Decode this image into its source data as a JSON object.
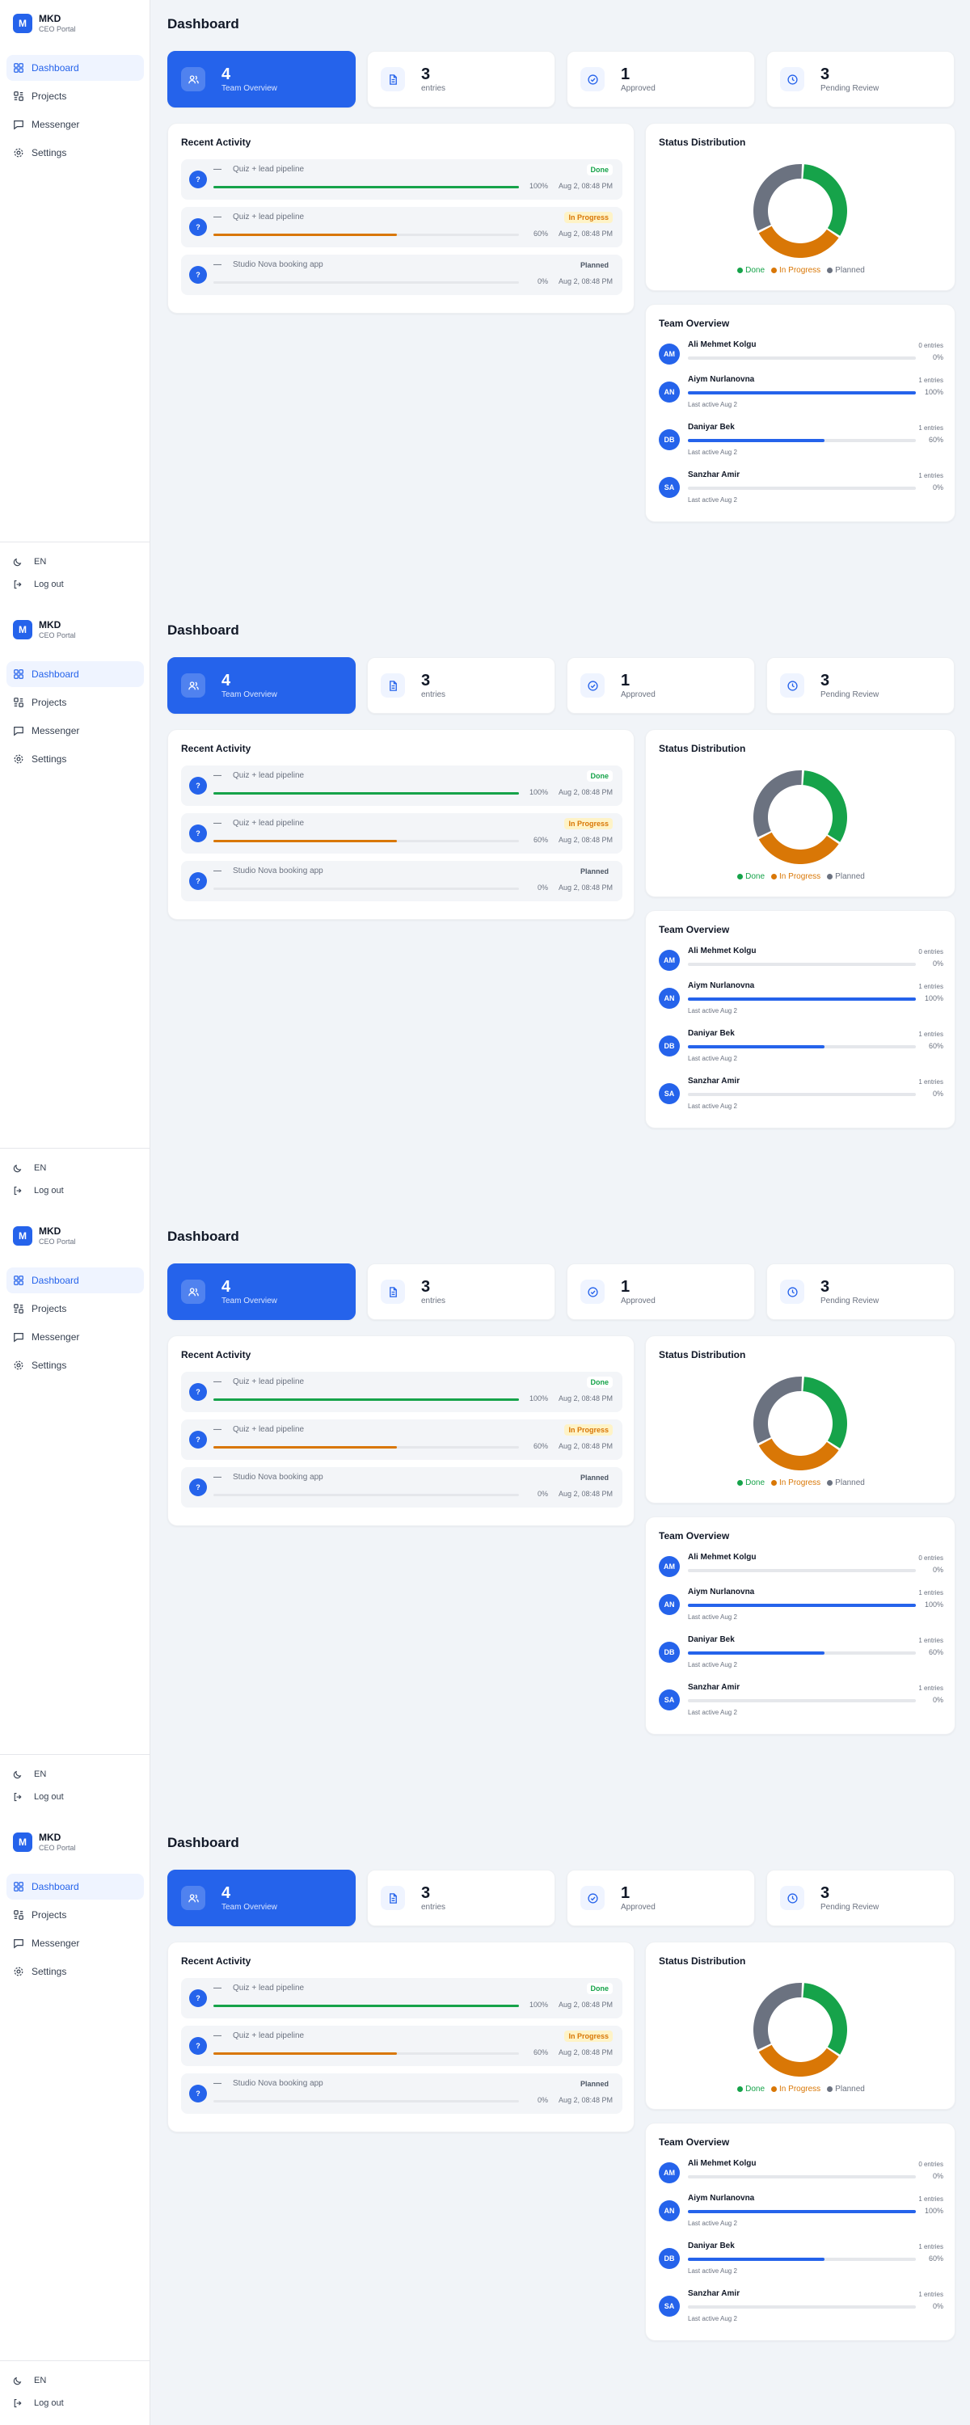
{
  "brand": {
    "logo_letter": "M",
    "name": "MKD",
    "subtitle": "CEO Portal"
  },
  "nav": [
    {
      "label": "Dashboard",
      "icon": "grid-icon",
      "active": true
    },
    {
      "label": "Projects",
      "icon": "projects-icon",
      "active": false
    },
    {
      "label": "Messenger",
      "icon": "message-icon",
      "active": false
    },
    {
      "label": "Settings",
      "icon": "gear-icon",
      "active": false
    }
  ],
  "bottom": {
    "language": "EN",
    "logout": "Log out"
  },
  "page_title": "Dashboard",
  "stats": [
    {
      "value": "4",
      "label": "Team Overview",
      "icon": "users-icon",
      "highlight": true
    },
    {
      "value": "3",
      "label": "entries",
      "icon": "document-icon",
      "highlight": false
    },
    {
      "value": "1",
      "label": "Approved",
      "icon": "check-circle-icon",
      "highlight": false
    },
    {
      "value": "3",
      "label": "Pending Review",
      "icon": "clock-icon",
      "highlight": false
    }
  ],
  "recent_activity": {
    "title": "Recent Activity",
    "items": [
      {
        "avatar": "?",
        "dash": "—",
        "name": "Quiz + lead pipeline",
        "status": "Done",
        "progress": 100,
        "progress_label": "100%",
        "date": "Aug 2, 08:48 PM",
        "status_color": "#16a34a",
        "status_bg": "#ffffff",
        "bar_color": "#16a34a"
      },
      {
        "avatar": "?",
        "dash": "—",
        "name": "Quiz + lead pipeline",
        "status": "In Progress",
        "progress": 60,
        "progress_label": "60%",
        "date": "Aug 2, 08:48 PM",
        "status_color": "#d97706",
        "status_bg": "#fef3c7",
        "bar_color": "#d97706"
      },
      {
        "avatar": "?",
        "dash": "—",
        "name": "Studio Nova booking app",
        "status": "Planned",
        "progress": 0,
        "progress_label": "0%",
        "date": "Aug 2, 08:48 PM",
        "status_color": "#4b5563",
        "status_bg": "transparent",
        "bar_color": "#6b7280"
      }
    ]
  },
  "status_distribution": {
    "title": "Status Distribution",
    "legend": [
      {
        "label": "Done",
        "color": "#16a34a"
      },
      {
        "label": "In Progress",
        "color": "#d97706"
      },
      {
        "label": "Planned",
        "color": "#6b7280"
      }
    ]
  },
  "chart_data": {
    "type": "pie",
    "categories": [
      "Done",
      "In Progress",
      "Planned"
    ],
    "values": [
      1,
      1,
      1
    ],
    "colors": [
      "#16a34a",
      "#d97706",
      "#6b7280"
    ],
    "title": "Status Distribution"
  },
  "team_overview": {
    "title": "Team Overview",
    "members": [
      {
        "initials": "AM",
        "name": "Ali Mehmet Kolgu",
        "entries": "0 entries",
        "progress": 0,
        "progress_label": "0%",
        "last_active": ""
      },
      {
        "initials": "AN",
        "name": "Aiym Nurlanovna",
        "entries": "1 entries",
        "progress": 100,
        "progress_label": "100%",
        "last_active": "Last active Aug 2"
      },
      {
        "initials": "DB",
        "name": "Daniyar Bek",
        "entries": "1 entries",
        "progress": 60,
        "progress_label": "60%",
        "last_active": "Last active Aug 2"
      },
      {
        "initials": "SA",
        "name": "Sanzhar Amir",
        "entries": "1 entries",
        "progress": 0,
        "progress_label": "0%",
        "last_active": "Last active Aug 2"
      }
    ]
  }
}
